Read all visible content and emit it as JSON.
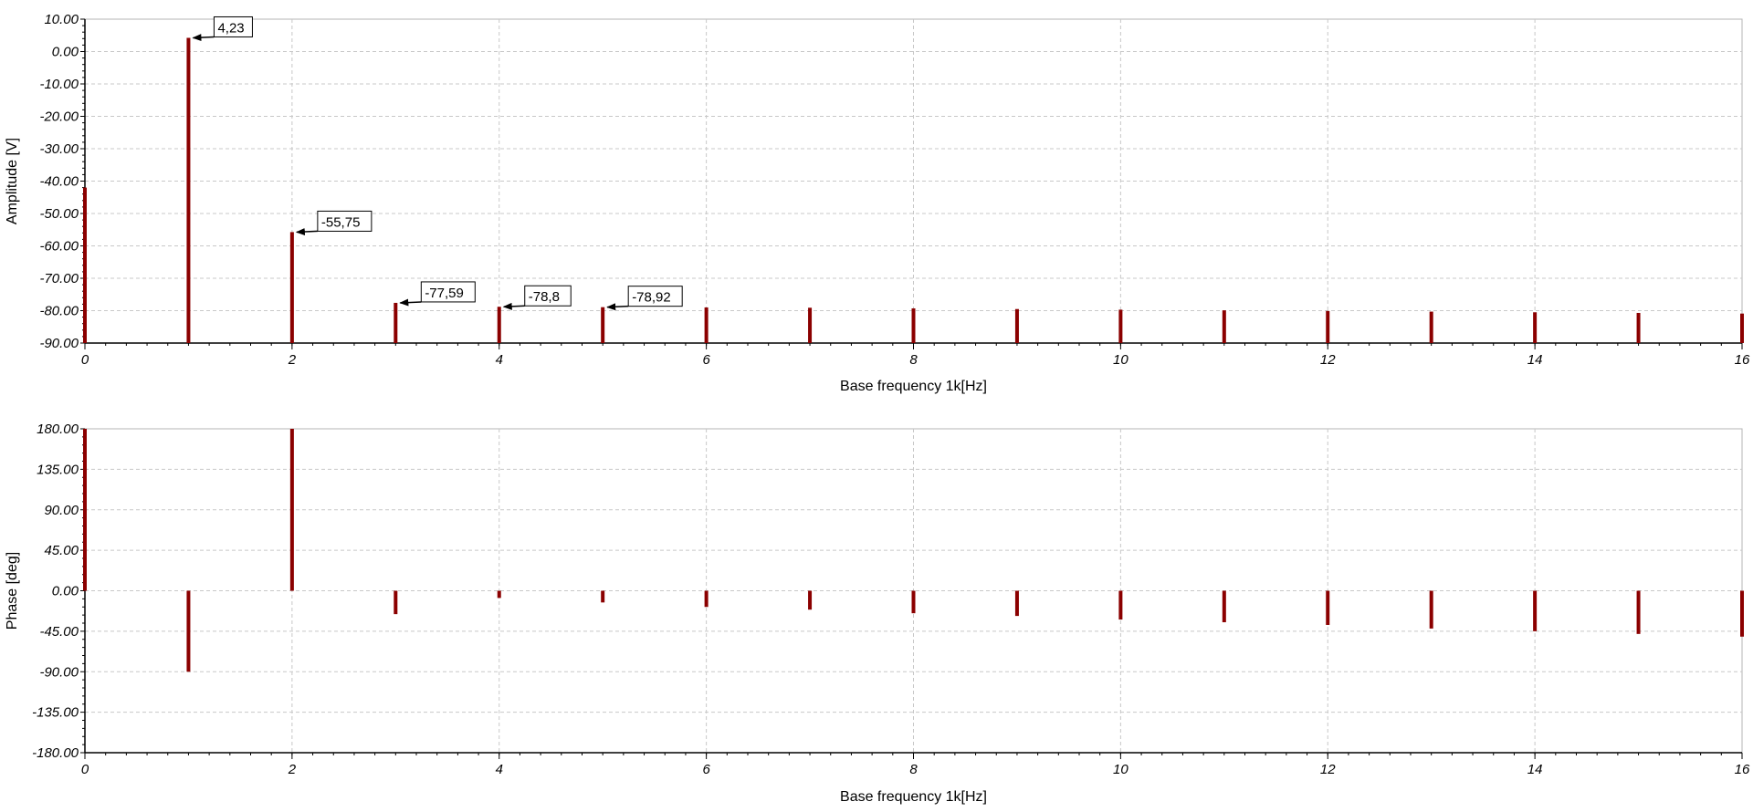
{
  "colors": {
    "spike": "#8b0000",
    "grid": "#c8c8c8",
    "frame": "#b4b4b4",
    "axis": "#000000"
  },
  "chart_data": [
    {
      "type": "bar",
      "xlabel": "Base frequency 1k[Hz]",
      "ylabel": "Amplitude [V]",
      "xlim": [
        0,
        16
      ],
      "ylim": [
        -90,
        10
      ],
      "grid": true,
      "x_ticks": [
        "0",
        "2",
        "4",
        "6",
        "8",
        "10",
        "12",
        "14",
        "16"
      ],
      "y_ticks": [
        "10.00",
        "0.00",
        "-10.00",
        "-20.00",
        "-30.00",
        "-40.00",
        "-50.00",
        "-60.00",
        "-70.00",
        "-80.00",
        "-90.00"
      ],
      "x": [
        0,
        1,
        2,
        3,
        4,
        5,
        6,
        7,
        8,
        9,
        10,
        11,
        12,
        13,
        14,
        15,
        16
      ],
      "values": [
        -42,
        4.23,
        -55.75,
        -77.59,
        -78.8,
        -78.92,
        -79.0,
        -79.1,
        -79.3,
        -79.5,
        -79.7,
        -79.9,
        -80.1,
        -80.3,
        -80.5,
        -80.7,
        -80.9
      ],
      "annotations": [
        {
          "x": 1,
          "y": 4.23,
          "text": "4,23"
        },
        {
          "x": 2,
          "y": -55.75,
          "text": "-55,75"
        },
        {
          "x": 3,
          "y": -77.59,
          "text": "-77,59"
        },
        {
          "x": 4,
          "y": -78.8,
          "text": "-78,8"
        },
        {
          "x": 5,
          "y": -78.92,
          "text": "-78,92"
        }
      ]
    },
    {
      "type": "bar",
      "xlabel": "Base frequency 1k[Hz]",
      "ylabel": "Phase [deg]",
      "xlim": [
        0,
        16
      ],
      "ylim": [
        -180,
        180
      ],
      "grid": true,
      "x_ticks": [
        "0",
        "2",
        "4",
        "6",
        "8",
        "10",
        "12",
        "14",
        "16"
      ],
      "y_ticks": [
        "180.00",
        "135.00",
        "90.00",
        "45.00",
        "0.00",
        "-45.00",
        "-90.00",
        "-135.00",
        "-180.00"
      ],
      "x": [
        0,
        1,
        2,
        3,
        4,
        5,
        6,
        7,
        8,
        9,
        10,
        11,
        12,
        13,
        14,
        15,
        16
      ],
      "values": [
        180,
        -90,
        180,
        -26,
        -8,
        -13,
        -18,
        -21,
        -25,
        -28,
        -32,
        -35,
        -38,
        -42,
        -45,
        -48,
        -51
      ]
    }
  ]
}
